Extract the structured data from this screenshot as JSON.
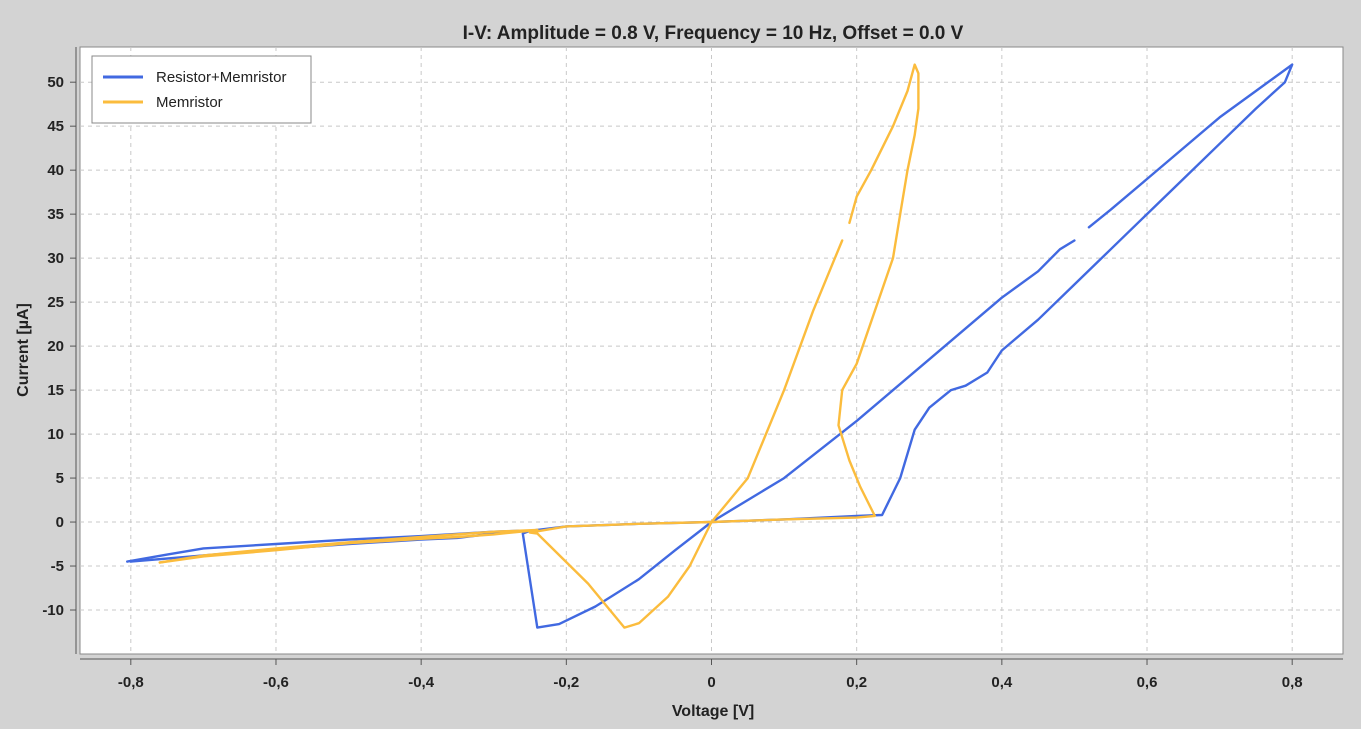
{
  "chart_data": {
    "type": "line",
    "title": "I-V: Amplitude = 0.8 V, Frequency = 10 Hz, Offset = 0.0 V",
    "xlabel": "Voltage [V]",
    "ylabel": "Current [µA]",
    "xlim": [
      -0.87,
      0.87
    ],
    "ylim": [
      -15,
      54
    ],
    "grid": true,
    "legend_position": "top-left",
    "xticks": [
      {
        "v": -0.8,
        "label": "-0,8"
      },
      {
        "v": -0.6,
        "label": "-0,6"
      },
      {
        "v": -0.4,
        "label": "-0,4"
      },
      {
        "v": -0.2,
        "label": "-0,2"
      },
      {
        "v": 0,
        "label": "0"
      },
      {
        "v": 0.2,
        "label": "0,2"
      },
      {
        "v": 0.4,
        "label": "0,4"
      },
      {
        "v": 0.6,
        "label": "0,6"
      },
      {
        "v": 0.8,
        "label": "0,8"
      }
    ],
    "yticks": [
      {
        "v": -10,
        "label": "-10"
      },
      {
        "v": -5,
        "label": "-5"
      },
      {
        "v": 0,
        "label": "0"
      },
      {
        "v": 5,
        "label": "5"
      },
      {
        "v": 10,
        "label": "10"
      },
      {
        "v": 15,
        "label": "15"
      },
      {
        "v": 20,
        "label": "20"
      },
      {
        "v": 25,
        "label": "25"
      },
      {
        "v": 30,
        "label": "30"
      },
      {
        "v": 35,
        "label": "35"
      },
      {
        "v": 40,
        "label": "40"
      },
      {
        "v": 45,
        "label": "45"
      },
      {
        "v": 50,
        "label": "50"
      }
    ],
    "series": [
      {
        "name": "Resistor+Memristor",
        "color": "#4169e1",
        "segments": [
          [
            [
              0,
              0
            ],
            [
              0.1,
              5
            ],
            [
              0.2,
              11.5
            ],
            [
              0.3,
              18.5
            ],
            [
              0.4,
              25.5
            ],
            [
              0.45,
              28.5
            ],
            [
              0.48,
              31
            ],
            [
              0.5,
              32
            ]
          ],
          [
            [
              0.52,
              33.5
            ],
            [
              0.55,
              35.5
            ],
            [
              0.6,
              39
            ],
            [
              0.7,
              46
            ],
            [
              0.75,
              49
            ],
            [
              0.8,
              52
            ],
            [
              0.79,
              50
            ],
            [
              0.75,
              47
            ],
            [
              0.7,
              43
            ],
            [
              0.65,
              39
            ],
            [
              0.6,
              35
            ],
            [
              0.55,
              31
            ],
            [
              0.5,
              27
            ],
            [
              0.45,
              23
            ],
            [
              0.4,
              19.5
            ],
            [
              0.38,
              17
            ],
            [
              0.35,
              15.5
            ],
            [
              0.33,
              15
            ],
            [
              0.3,
              13
            ],
            [
              0.28,
              10.5
            ],
            [
              0.26,
              5
            ],
            [
              0.235,
              0.8
            ],
            [
              0.2,
              0.7
            ],
            [
              0.1,
              0.3
            ],
            [
              0,
              0
            ],
            [
              -0.1,
              -0.2
            ],
            [
              -0.2,
              -0.5
            ],
            [
              -0.25,
              -1
            ],
            [
              -0.26,
              -1.3
            ],
            [
              -0.24,
              -12
            ],
            [
              -0.21,
              -11.6
            ],
            [
              -0.16,
              -9.6
            ],
            [
              -0.1,
              -6.5
            ],
            [
              -0.05,
              -3.2
            ],
            [
              0,
              0
            ]
          ]
        ]
      },
      {
        "name": "Memristor",
        "color": "#fbbc3d",
        "segments": [
          [
            [
              0,
              0
            ],
            [
              0.05,
              5
            ],
            [
              0.1,
              15
            ],
            [
              0.14,
              24
            ],
            [
              0.17,
              30
            ],
            [
              0.18,
              32
            ]
          ],
          [
            [
              0.19,
              34
            ],
            [
              0.2,
              37
            ],
            [
              0.22,
              40
            ],
            [
              0.25,
              45
            ],
            [
              0.27,
              49
            ],
            [
              0.28,
              52
            ],
            [
              0.285,
              51
            ],
            [
              0.285,
              47
            ],
            [
              0.28,
              44
            ],
            [
              0.27,
              40
            ],
            [
              0.26,
              35
            ],
            [
              0.25,
              30
            ],
            [
              0.2,
              18
            ],
            [
              0.18,
              15
            ],
            [
              0.175,
              11
            ],
            [
              0.19,
              7
            ],
            [
              0.205,
              4
            ],
            [
              0.225,
              0.7
            ],
            [
              0.2,
              0.5
            ],
            [
              0.1,
              0.3
            ],
            [
              0,
              0
            ],
            [
              -0.1,
              -0.2
            ],
            [
              -0.2,
              -0.5
            ],
            [
              -0.25,
              -1.2
            ],
            [
              -0.24,
              -1.3
            ],
            [
              -0.17,
              -7
            ],
            [
              -0.12,
              -12
            ],
            [
              -0.1,
              -11.5
            ],
            [
              -0.06,
              -8.5
            ],
            [
              -0.03,
              -5
            ],
            [
              0,
              0
            ]
          ]
        ]
      },
      {
        "name": "Resistor+Memristor",
        "color": "#4169e1",
        "segments": [
          [
            [
              -0.805,
              -4.5
            ],
            [
              -0.75,
              -3.7
            ],
            [
              -0.7,
              -3
            ],
            [
              -0.6,
              -2.5
            ],
            [
              -0.5,
              -2
            ],
            [
              -0.4,
              -1.6
            ],
            [
              -0.3,
              -1.1
            ],
            [
              -0.265,
              -1.0
            ]
          ],
          [
            [
              -0.265,
              -1.0
            ],
            [
              -0.3,
              -1.3
            ],
            [
              -0.35,
              -1.8
            ],
            [
              -0.4,
              -2.0
            ],
            [
              -0.5,
              -2.5
            ],
            [
              -0.6,
              -3.1
            ],
            [
              -0.7,
              -3.8
            ],
            [
              -0.8,
              -4.5
            ]
          ]
        ]
      },
      {
        "name": "Memristor",
        "color": "#fbbc3d",
        "segments": [
          [
            [
              -0.76,
              -4.6
            ],
            [
              -0.7,
              -3.8
            ],
            [
              -0.6,
              -3.0
            ],
            [
              -0.5,
              -2.3
            ],
            [
              -0.4,
              -1.7
            ],
            [
              -0.3,
              -1.1
            ],
            [
              -0.24,
              -0.9
            ]
          ],
          [
            [
              -0.24,
              -0.9
            ],
            [
              -0.3,
              -1.4
            ],
            [
              -0.35,
              -1.7
            ],
            [
              -0.4,
              -1.9
            ],
            [
              -0.5,
              -2.4
            ],
            [
              -0.6,
              -3.2
            ],
            [
              -0.7,
              -3.9
            ],
            [
              -0.76,
              -4.6
            ]
          ]
        ]
      }
    ]
  },
  "legend": {
    "entries": [
      {
        "label": "Resistor+Memristor",
        "color": "#4169e1"
      },
      {
        "label": "Memristor",
        "color": "#fbbc3d"
      }
    ]
  }
}
